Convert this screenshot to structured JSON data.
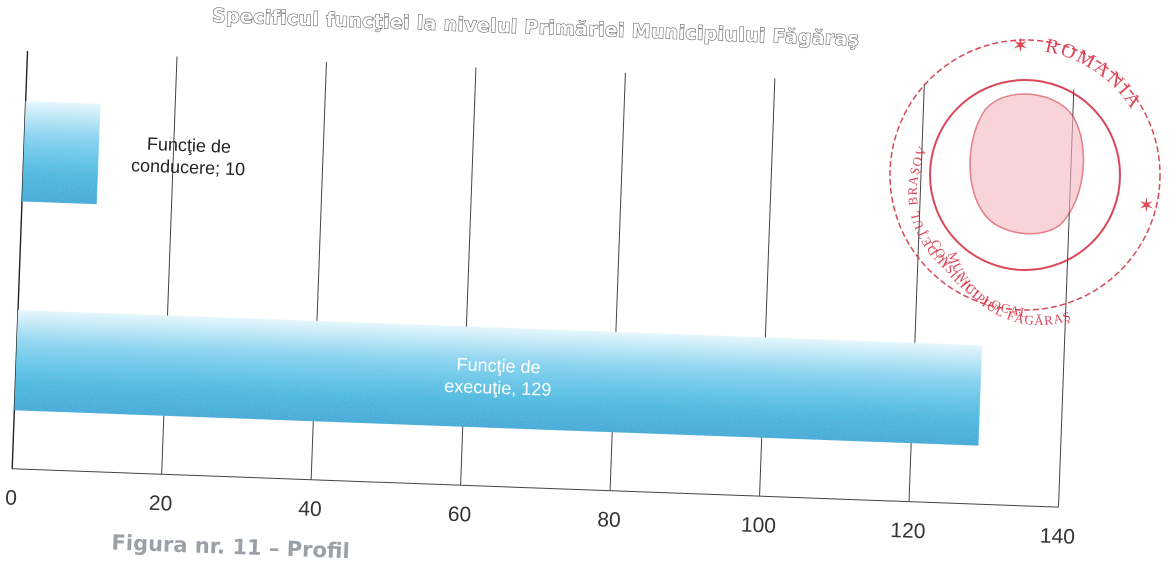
{
  "chart_data": {
    "type": "bar",
    "orientation": "horizontal",
    "title": "Specificul funcţiei la nivelul Primăriei Municipiului Făgăraş",
    "categories": [
      "Funcţie de conducere",
      "Funcţie de execuţie"
    ],
    "values": [
      10,
      129
    ],
    "data_labels": [
      [
        "Funcţie de",
        "conducere; 10"
      ],
      [
        "Funcţie de",
        "execuţie, 129"
      ]
    ],
    "xlim": [
      0,
      140
    ],
    "xticks": [
      0,
      20,
      40,
      60,
      80,
      100,
      120,
      140
    ],
    "grid": true,
    "legend": "none",
    "bar_color": "#2fb4dd"
  },
  "caption": "Figura nr. 11 – Profil",
  "seal": {
    "top_text": "ROMANIA",
    "left_text": "JUDEŢUL BRAŞOV",
    "bottom_text": "MUNICIPIUL FĂGĂRAŞ",
    "inner_text": "CONSILIUL LOCAL",
    "color": "#d4283a"
  }
}
